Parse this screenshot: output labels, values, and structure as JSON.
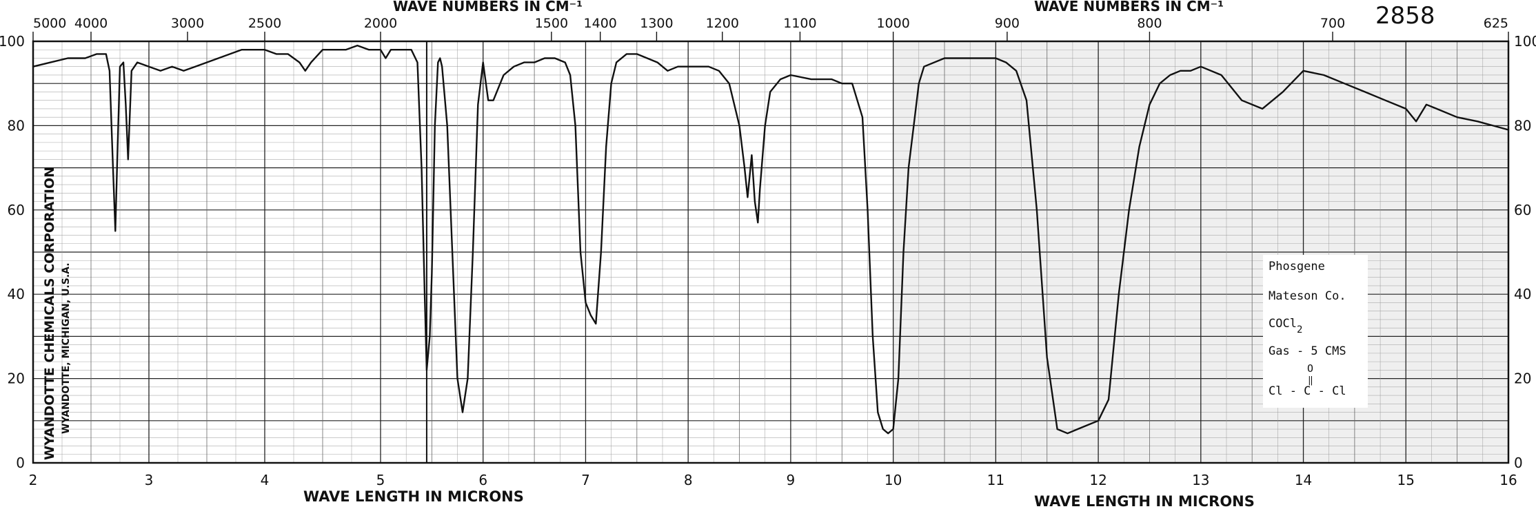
{
  "chart_data": {
    "type": "line",
    "chart_number": "2858",
    "top_axis_label": "WAVE NUMBERS IN CM⁻¹",
    "bottom_axis_label": "WAVE LENGTH IN MICRONS",
    "corporation_line1": "WYANDOTTE CHEMICALS CORPORATION",
    "corporation_line2": "WYANDOTTE, MICHIGAN, U.S.A.",
    "x_unit": "microns",
    "y_unit": "percent transmittance",
    "xlim": [
      2,
      16
    ],
    "ylim": [
      0,
      100
    ],
    "grid": true,
    "segments": [
      2,
      5.45,
      16
    ],
    "x_ticks": [
      "2",
      "3",
      "4",
      "5",
      "6",
      "7",
      "8",
      "9",
      "10",
      "11",
      "12",
      "13",
      "14",
      "15",
      "16"
    ],
    "y_ticks_left": [
      "0",
      "20",
      "40",
      "60",
      "80",
      "100"
    ],
    "y_ticks_right": [
      "0",
      "20",
      "40",
      "60",
      "80",
      "100"
    ],
    "wavenumber_ticks": [
      {
        "label": "5000",
        "cm": 5000
      },
      {
        "label": "4000",
        "cm": 4000
      },
      {
        "label": "3000",
        "cm": 3000
      },
      {
        "label": "2500",
        "cm": 2500
      },
      {
        "label": "2000",
        "cm": 2000
      },
      {
        "label": "1500",
        "cm": 1500
      },
      {
        "label": "1400",
        "cm": 1400
      },
      {
        "label": "1300",
        "cm": 1300
      },
      {
        "label": "1200",
        "cm": 1200
      },
      {
        "label": "1100",
        "cm": 1100
      },
      {
        "label": "1000",
        "cm": 1000
      },
      {
        "label": "900",
        "cm": 900
      },
      {
        "label": "800",
        "cm": 800
      },
      {
        "label": "700",
        "cm": 700
      },
      {
        "label": "625",
        "cm": 625
      }
    ],
    "sample_info": {
      "name": "Phosgene",
      "supplier": "Mateson Co.",
      "formula_base": "COCl",
      "formula_sub": "2",
      "conditions": "Gas - 5 CMS",
      "structure_top": "O",
      "structure_bond": "‖",
      "structure_bottom": "Cl - C - Cl"
    },
    "series": [
      {
        "values": [
          [
            2.0,
            94
          ],
          [
            2.15,
            95
          ],
          [
            2.3,
            96
          ],
          [
            2.45,
            96
          ],
          [
            2.55,
            97
          ],
          [
            2.63,
            97
          ],
          [
            2.66,
            93
          ],
          [
            2.69,
            70
          ],
          [
            2.71,
            55
          ],
          [
            2.73,
            75
          ],
          [
            2.75,
            94
          ],
          [
            2.78,
            95
          ],
          [
            2.8,
            85
          ],
          [
            2.82,
            72
          ],
          [
            2.85,
            93
          ],
          [
            2.9,
            95
          ],
          [
            3.0,
            94
          ],
          [
            3.1,
            93
          ],
          [
            3.2,
            94
          ],
          [
            3.3,
            93
          ],
          [
            3.4,
            94
          ],
          [
            3.5,
            95
          ],
          [
            3.6,
            96
          ],
          [
            3.7,
            97
          ],
          [
            3.8,
            98
          ],
          [
            3.9,
            98
          ],
          [
            4.0,
            98
          ],
          [
            4.1,
            97
          ],
          [
            4.2,
            97
          ],
          [
            4.3,
            95
          ],
          [
            4.35,
            93
          ],
          [
            4.4,
            95
          ],
          [
            4.5,
            98
          ],
          [
            4.6,
            98
          ],
          [
            4.7,
            98
          ],
          [
            4.8,
            99
          ],
          [
            4.9,
            98
          ],
          [
            5.0,
            98
          ],
          [
            5.05,
            96
          ],
          [
            5.1,
            98
          ],
          [
            5.2,
            98
          ],
          [
            5.3,
            98
          ],
          [
            5.36,
            95
          ],
          [
            5.4,
            70
          ],
          [
            5.43,
            40
          ],
          [
            5.45,
            22
          ],
          [
            5.48,
            30
          ],
          [
            5.5,
            45
          ],
          [
            5.53,
            80
          ],
          [
            5.56,
            95
          ],
          [
            5.58,
            96
          ],
          [
            5.6,
            94
          ],
          [
            5.65,
            80
          ],
          [
            5.7,
            50
          ],
          [
            5.75,
            20
          ],
          [
            5.8,
            12
          ],
          [
            5.85,
            20
          ],
          [
            5.9,
            50
          ],
          [
            5.95,
            85
          ],
          [
            6.0,
            95
          ],
          [
            6.05,
            86
          ],
          [
            6.1,
            86
          ],
          [
            6.2,
            92
          ],
          [
            6.3,
            94
          ],
          [
            6.4,
            95
          ],
          [
            6.5,
            95
          ],
          [
            6.6,
            96
          ],
          [
            6.7,
            96
          ],
          [
            6.8,
            95
          ],
          [
            6.85,
            92
          ],
          [
            6.9,
            80
          ],
          [
            6.95,
            50
          ],
          [
            7.0,
            38
          ],
          [
            7.05,
            35
          ],
          [
            7.1,
            33
          ],
          [
            7.15,
            50
          ],
          [
            7.2,
            75
          ],
          [
            7.25,
            90
          ],
          [
            7.3,
            95
          ],
          [
            7.4,
            97
          ],
          [
            7.5,
            97
          ],
          [
            7.6,
            96
          ],
          [
            7.7,
            95
          ],
          [
            7.8,
            93
          ],
          [
            7.9,
            94
          ],
          [
            8.0,
            94
          ],
          [
            8.1,
            94
          ],
          [
            8.2,
            94
          ],
          [
            8.3,
            93
          ],
          [
            8.4,
            90
          ],
          [
            8.5,
            80
          ],
          [
            8.55,
            70
          ],
          [
            8.58,
            63
          ],
          [
            8.6,
            68
          ],
          [
            8.62,
            73
          ],
          [
            8.65,
            62
          ],
          [
            8.68,
            57
          ],
          [
            8.7,
            65
          ],
          [
            8.75,
            80
          ],
          [
            8.8,
            88
          ],
          [
            8.9,
            91
          ],
          [
            9.0,
            92
          ],
          [
            9.2,
            91
          ],
          [
            9.4,
            91
          ],
          [
            9.5,
            90
          ],
          [
            9.6,
            90
          ],
          [
            9.7,
            82
          ],
          [
            9.75,
            60
          ],
          [
            9.8,
            30
          ],
          [
            9.85,
            12
          ],
          [
            9.9,
            8
          ],
          [
            9.95,
            7
          ],
          [
            10.0,
            8
          ],
          [
            10.05,
            20
          ],
          [
            10.1,
            50
          ],
          [
            10.15,
            70
          ],
          [
            10.2,
            80
          ],
          [
            10.25,
            90
          ],
          [
            10.3,
            94
          ],
          [
            10.5,
            96
          ],
          [
            10.7,
            96
          ],
          [
            10.9,
            96
          ],
          [
            11.0,
            96
          ],
          [
            11.1,
            95
          ],
          [
            11.2,
            93
          ],
          [
            11.3,
            86
          ],
          [
            11.4,
            60
          ],
          [
            11.5,
            25
          ],
          [
            11.6,
            8
          ],
          [
            11.7,
            7
          ],
          [
            11.8,
            8
          ],
          [
            11.9,
            9
          ],
          [
            12.0,
            10
          ],
          [
            12.1,
            15
          ],
          [
            12.2,
            40
          ],
          [
            12.3,
            60
          ],
          [
            12.4,
            75
          ],
          [
            12.5,
            85
          ],
          [
            12.6,
            90
          ],
          [
            12.7,
            92
          ],
          [
            12.8,
            93
          ],
          [
            12.9,
            93
          ],
          [
            13.0,
            94
          ],
          [
            13.2,
            92
          ],
          [
            13.4,
            86
          ],
          [
            13.6,
            84
          ],
          [
            13.8,
            88
          ],
          [
            14.0,
            93
          ],
          [
            14.2,
            92
          ],
          [
            14.4,
            90
          ],
          [
            14.6,
            88
          ],
          [
            14.8,
            86
          ],
          [
            15.0,
            84
          ],
          [
            15.1,
            81
          ],
          [
            15.2,
            85
          ],
          [
            15.3,
            84
          ],
          [
            15.5,
            82
          ],
          [
            15.7,
            81
          ],
          [
            15.85,
            80
          ],
          [
            16.0,
            79
          ]
        ]
      }
    ]
  }
}
